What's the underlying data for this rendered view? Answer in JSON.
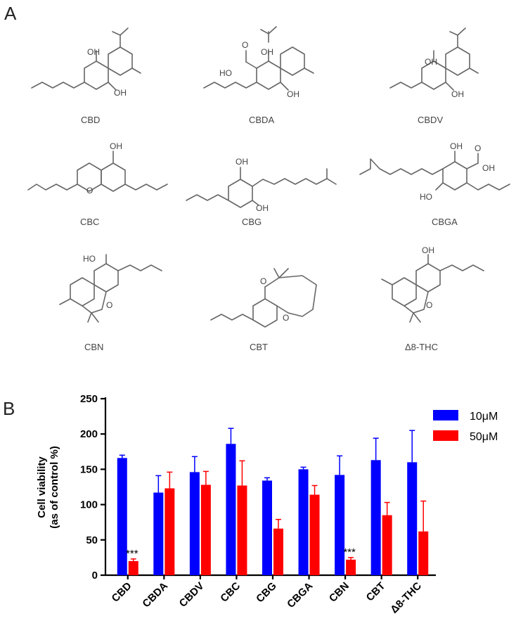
{
  "panels": {
    "a_label": "A",
    "b_label": "B"
  },
  "molecules": [
    {
      "name": "CBD",
      "atoms": [
        "OH",
        "OH"
      ]
    },
    {
      "name": "CBDA",
      "atoms": [
        "OH",
        "HO",
        "O",
        "OH"
      ]
    },
    {
      "name": "CBDV",
      "atoms": [
        "OH",
        "OH"
      ]
    },
    {
      "name": "CBC",
      "atoms": [
        "OH",
        "O"
      ]
    },
    {
      "name": "CBG",
      "atoms": [
        "OH",
        "OH"
      ]
    },
    {
      "name": "CBGA",
      "atoms": [
        "OH",
        "OH",
        "O",
        "HO"
      ]
    },
    {
      "name": "CBN",
      "atoms": [
        "HO",
        "O"
      ]
    },
    {
      "name": "CBT",
      "atoms": [
        "O",
        "O"
      ]
    },
    {
      "name": "Δ8-THC",
      "atoms": [
        "OH",
        "O"
      ]
    }
  ],
  "chart_data": {
    "type": "bar",
    "categories": [
      "CBD",
      "CBDA",
      "CBDV",
      "CBC",
      "CBG",
      "CBGA",
      "CBN",
      "CBT",
      "Δ8-THC"
    ],
    "series": [
      {
        "name": "10μM",
        "color": "#0000ff",
        "values": [
          166,
          117,
          146,
          186,
          134,
          150,
          142,
          163,
          160
        ],
        "errors": [
          4,
          24,
          22,
          22,
          4,
          3,
          27,
          31,
          45
        ]
      },
      {
        "name": "50μM",
        "color": "#ff0000",
        "values": [
          20,
          123,
          128,
          127,
          66,
          114,
          22,
          85,
          62
        ],
        "errors": [
          3,
          23,
          19,
          35,
          13,
          13,
          3,
          18,
          43
        ]
      }
    ],
    "ylabel_line1": "Cell viability",
    "ylabel_line2": "(as of control %)",
    "xlabel": "",
    "ylim": [
      0,
      250
    ],
    "yticks": [
      0,
      50,
      100,
      150,
      200,
      250
    ],
    "annotations": [
      {
        "category": "CBD",
        "series": "50μM",
        "text": "***"
      },
      {
        "category": "CBN",
        "series": "50μM",
        "text": "***"
      }
    ],
    "legend_position": "top-right",
    "grid": false
  }
}
